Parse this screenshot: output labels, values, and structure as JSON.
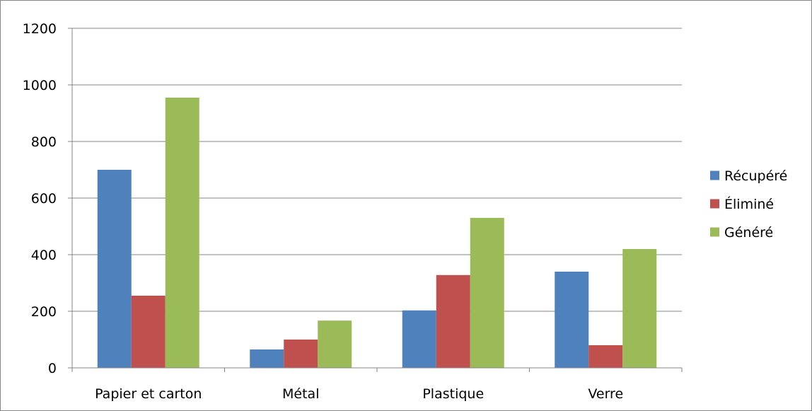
{
  "chart_data": {
    "type": "bar",
    "categories": [
      "Papier et carton",
      "Métal",
      "Plastique",
      "Verre"
    ],
    "series": [
      {
        "name": "Récupéré",
        "color": "#4F81BD",
        "values": [
          700,
          65,
          203,
          340
        ]
      },
      {
        "name": "Éliminé",
        "color": "#C0504D",
        "values": [
          255,
          100,
          328,
          80
        ]
      },
      {
        "name": "Généré",
        "color": "#9BBB59",
        "values": [
          955,
          167,
          530,
          420
        ]
      }
    ],
    "title": "",
    "xlabel": "",
    "ylabel": "",
    "ylim": [
      0,
      1200
    ],
    "yticks": [
      0,
      200,
      400,
      600,
      800,
      1000,
      1200
    ],
    "grid": true,
    "legend_position": "right"
  }
}
